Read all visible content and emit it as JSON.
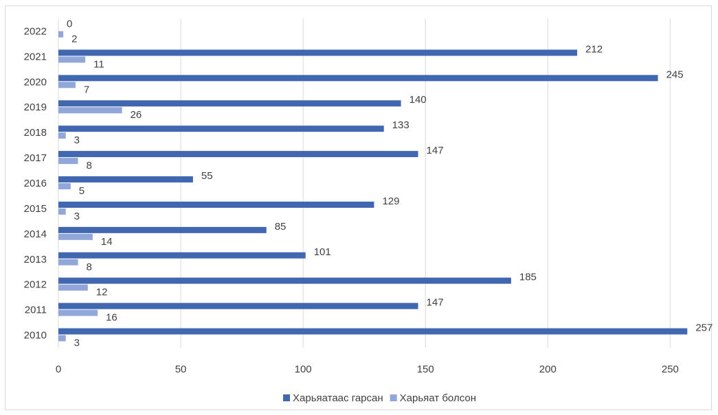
{
  "chart_data": {
    "type": "bar",
    "orientation": "horizontal",
    "categories": [
      "2010",
      "2011",
      "2012",
      "2013",
      "2014",
      "2015",
      "2016",
      "2017",
      "2018",
      "2019",
      "2020",
      "2021",
      "2022"
    ],
    "series": [
      {
        "name": "Харьяатаас гарсан",
        "color": "#4167b1",
        "values": [
          257,
          147,
          185,
          101,
          85,
          129,
          55,
          147,
          133,
          140,
          245,
          212,
          0
        ]
      },
      {
        "name": "Харьяат болсон",
        "color": "#91a7d9",
        "values": [
          3,
          16,
          12,
          8,
          14,
          3,
          5,
          8,
          3,
          26,
          7,
          11,
          2
        ]
      }
    ],
    "xlim": [
      0,
      260
    ],
    "xticks": [
      0,
      50,
      100,
      150,
      200,
      250
    ],
    "grid": "vertical",
    "legend_position": "bottom"
  }
}
